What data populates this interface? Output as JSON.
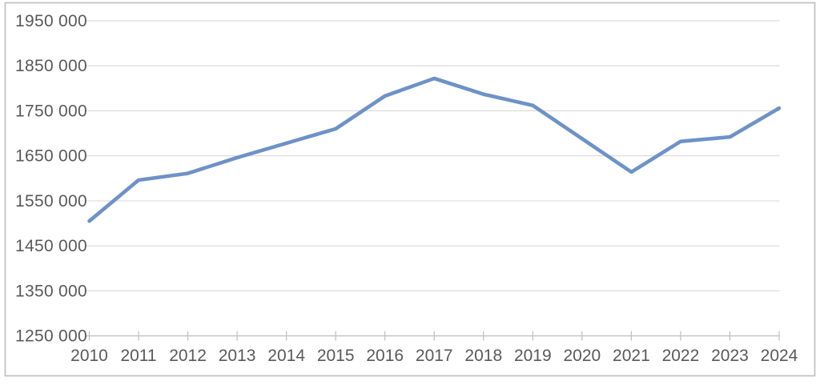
{
  "chart_data": {
    "type": "line",
    "title": "",
    "xlabel": "",
    "ylabel": "",
    "categories": [
      "2010",
      "2011",
      "2012",
      "2013",
      "2014",
      "2015",
      "2016",
      "2017",
      "2018",
      "2019",
      "2020",
      "2021",
      "2022",
      "2023",
      "2024"
    ],
    "series": [
      {
        "name": "series-1",
        "values": [
          1505000,
          1596000,
          1611000,
          1646000,
          1678000,
          1710000,
          1783000,
          1822000,
          1787000,
          1762000,
          1688000,
          1614000,
          1682000,
          1692000,
          1756000
        ]
      }
    ],
    "ylim": [
      1250000,
      1950000
    ],
    "ytick_step": 100000,
    "ytick_labels": [
      "1250 000",
      "1350 000",
      "1450 000",
      "1550 000",
      "1650 000",
      "1750 000",
      "1850 000",
      "1950 000"
    ],
    "grid": "horizontal-only",
    "legend": "none",
    "colors": {
      "line": "#6d92c8",
      "gridline": "#d9d9d9",
      "axis_line": "#bfbfbf",
      "tick_mark": "#bfbfbf",
      "tick_label": "#595959",
      "frame_border": "#c3c3c3",
      "background": "#ffffff"
    }
  }
}
